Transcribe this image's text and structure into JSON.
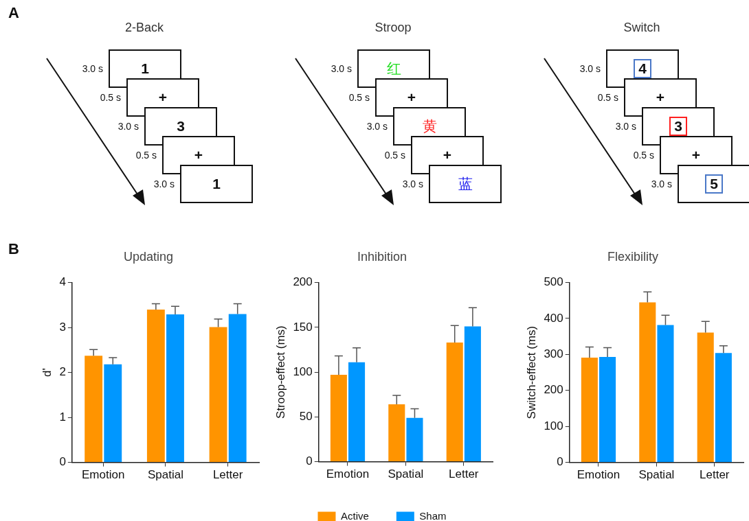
{
  "chart_data": [
    {
      "type": "other",
      "title": "2-Back",
      "annotations": [
        "A",
        "3.0 s",
        "1",
        "0.5 s",
        "+",
        "3.0 s",
        "3",
        "0.5 s",
        "+",
        "3.0 s",
        "1"
      ]
    },
    {
      "type": "other",
      "title": "Stroop",
      "annotations": [
        "3.0 s",
        "红",
        "0.5 s",
        "+",
        "3.0 s",
        "黄",
        "0.5 s",
        "+",
        "3.0 s",
        "蓝"
      ],
      "colors": [
        "#22dd22",
        null,
        "#ff2020",
        null,
        "#2020ee"
      ]
    },
    {
      "type": "other",
      "title": "Switch",
      "annotations": [
        "3.0 s",
        "4",
        "0.5 s",
        "+",
        "3.0 s",
        "3",
        "0.5 s",
        "+",
        "3.0 s",
        "5"
      ]
    },
    {
      "type": "bar",
      "title": "Updating",
      "ylabel": "d'",
      "annotations": [
        "B"
      ],
      "categories": [
        "Emotion",
        "Spatial",
        "Letter"
      ],
      "ylim": [
        0,
        4
      ],
      "yticks": [
        0,
        1,
        2,
        3,
        4
      ],
      "series": [
        {
          "color": "#ff9400",
          "values": [
            2.37,
            3.4,
            3.01
          ],
          "errors": [
            [
              2.37,
              2.51
            ],
            [
              3.4,
              3.53
            ],
            [
              3.01,
              3.19
            ]
          ]
        },
        {
          "color": "#0097ff",
          "values": [
            2.18,
            3.29,
            3.3
          ],
          "errors": [
            [
              2.18,
              2.33
            ],
            [
              3.29,
              3.47
            ],
            [
              3.3,
              3.53
            ]
          ]
        }
      ]
    },
    {
      "type": "bar",
      "title": "Inhibition",
      "ylabel": "Stroop-effect (ms)",
      "categories": [
        "Emotion",
        "Spatial",
        "Letter"
      ],
      "ylim": [
        0,
        200
      ],
      "yticks": [
        0,
        50,
        100,
        150,
        200
      ],
      "legend": "bottom",
      "series": [
        {
          "name": "Active",
          "color": "#ff9400",
          "values": [
            97,
            64,
            133
          ],
          "errors": [
            [
              97,
              118
            ],
            [
              64,
              74
            ],
            [
              133,
              152
            ]
          ]
        },
        {
          "name": "Sham",
          "color": "#0097ff",
          "values": [
            111,
            49,
            151
          ],
          "errors": [
            [
              111,
              127
            ],
            [
              49,
              59
            ],
            [
              151,
              172
            ]
          ]
        }
      ]
    },
    {
      "type": "bar",
      "title": "Flexibility",
      "ylabel": "Switch-effect (ms)",
      "categories": [
        "Emotion",
        "Spatial",
        "Letter"
      ],
      "ylim": [
        0,
        500
      ],
      "yticks": [
        0,
        100,
        200,
        300,
        400,
        500
      ],
      "series": [
        {
          "color": "#ff9400",
          "values": [
            291,
            445,
            361
          ],
          "errors": [
            [
              291,
              321
            ],
            [
              445,
              474
            ],
            [
              361,
              392
            ]
          ]
        },
        {
          "color": "#0097ff",
          "values": [
            293,
            382,
            304
          ],
          "errors": [
            [
              293,
              319
            ],
            [
              382,
              409
            ],
            [
              304,
              324
            ]
          ]
        }
      ]
    }
  ]
}
